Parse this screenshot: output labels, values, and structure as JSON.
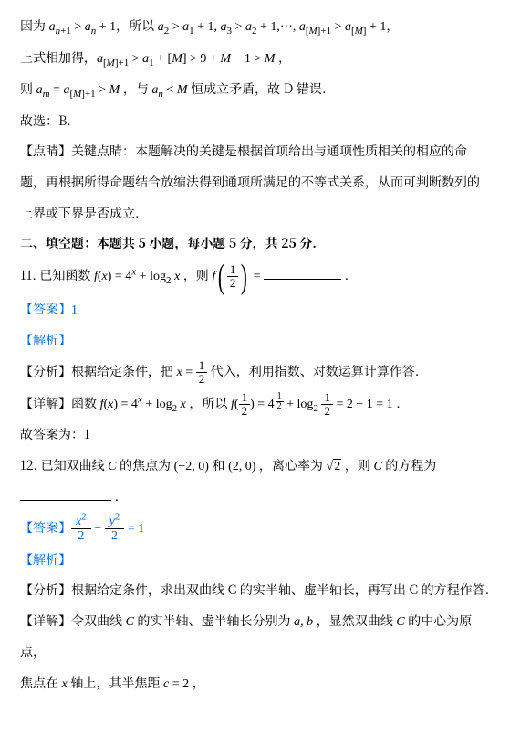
{
  "p1_a": "因为 ",
  "p1_b": "，所以 ",
  "p1_c": "，",
  "m1_1": "a",
  "m1_2": "n",
  "m1_3": "+1",
  "m1_4": " > ",
  "m1_5": "a",
  "m1_6": "n",
  "m1_7": " + 1",
  "m2_1": "a",
  "m2_2": "2",
  "m2_3": " > ",
  "m2_4": "a",
  "m2_5": "1",
  "m2_6": " + 1, ",
  "m2_7": "a",
  "m2_8": "3",
  "m2_9": " > ",
  "m2_10": "a",
  "m2_11": "2",
  "m2_12": " + 1,···, ",
  "m2_13": "a",
  "m2_14": "[",
  "m2_15": "M",
  "m2_16": "]+1",
  "m2_17": " > ",
  "m2_18": "a",
  "m2_19": "[",
  "m2_20": "M",
  "m2_21": "]",
  "m2_22": " + 1",
  "p2_a": "上式相加得，",
  "p2_b": " ，",
  "m3_1": "a",
  "m3_2": "[",
  "m3_3": "M",
  "m3_4": "]+1",
  "m3_5": " > ",
  "m3_6": "a",
  "m3_7": "1",
  "m3_8": " + [",
  "m3_9": "M",
  "m3_10": "] > 9 + ",
  "m3_11": "M",
  "m3_12": " − 1 > ",
  "m3_13": "M",
  "p3_a": "则 ",
  "p3_b": " ，与 ",
  "p3_c": " 恒成立矛盾，故 D 错误.",
  "m4_1": "a",
  "m4_2": "m",
  "m4_3": " = ",
  "m4_4": "a",
  "m4_5": "[",
  "m4_6": "M",
  "m4_7": "]+1",
  "m4_8": " > ",
  "m4_9": "M",
  "m5_1": "a",
  "m5_2": "n",
  "m5_3": " < ",
  "m5_4": "M",
  "p4": "故选：B.",
  "p5": "【点睛】关键点睛：本题解决的关键是根据首项给出与通项性质相关的相应的命题，再根据所得命题结合放缩法得到通项所满足的不等式关系，从而可判断数列的上界或下界是否成立.",
  "sec": "二、填空题：本题共 5 小题，每小题 5 分，共 25 分.",
  "q11_a": "11. 已知函数 ",
  "q11_b": " ，则 ",
  "q11_c": "  ＿＿＿＿＿＿＿.",
  "f1_1": "f",
  "f1_2": "(",
  "f1_3": "x",
  "f1_4": ") = 4",
  "f1_5": "x",
  "f1_6": " + log",
  "f1_7": "2",
  "f1_8": " ",
  "f1_9": "x",
  "f2_1": "f",
  "f2_n": "1",
  "f2_d": "2",
  "f2_eq": " =",
  "ans11_a": "【答案】",
  "ans11_b": "1",
  "jx": "【解析】",
  "fx11_a": "【分析】根据给定条件，把 ",
  "fx11_b": " 代入，利用指数、对数运算计算作答.",
  "x_eq": "x",
  "x_eq2": " = ",
  "x_n": "1",
  "x_d": "2",
  "xj11_a": "【详解】函数 ",
  "xj11_b": " ，所以 ",
  "xj11_c": " .",
  "f3_1": "f",
  "f3_2": "(",
  "f3_n": "1",
  "f3_d": "2",
  "f3_3": ") = 4",
  "f3_sn": "1",
  "f3_sd": "2",
  "f3_4": " + log",
  "f3_5": "2",
  "f3_6": " ",
  "f3_n2": "1",
  "f3_d2": "2",
  "f3_7": " = 2 − 1 = 1",
  "gd11": "故答案为：1",
  "q12_a": "12. 已知双曲线 ",
  "q12_b": " 的焦点为 ",
  "q12_c": " 和 ",
  "q12_d": " ，离心率为 ",
  "q12_e": " ，则 ",
  "q12_f": " 的方程为",
  "C": "C",
  "pt1": "(−2, 0)",
  "pt2": "(2, 0)",
  "sq2": "2",
  "rad": "√",
  "ans12_a": "【答案】",
  "eq_n1": "x",
  "eq_s1": "2",
  "eq_d1": "2",
  "eq_m": " − ",
  "eq_n2": "y",
  "eq_s2": "2",
  "eq_d2": "2",
  "eq_r": " = 1",
  "fx12": "【分析】根据给定条件，求出双曲线 C 的实半轴、虚半轴长，再写出 C 的方程作答.",
  "xj12_a": "【详解】令双曲线 ",
  "xj12_b": " 的实半轴、虚半轴长分别为 ",
  "xj12_c": " ，显然双曲线 ",
  "xj12_d": " 的中心为原点，",
  "ab": "a, b",
  "xj12e_a": "焦点在 ",
  "xj12e_b": " 轴上，其半焦距 ",
  "xj12e_c": " ，",
  "xax": "x",
  "c2": "c ",
  "c2b": "= 2"
}
